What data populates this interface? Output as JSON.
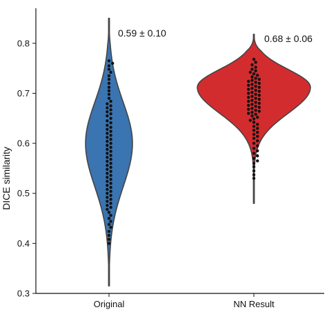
{
  "chart_data": {
    "type": "violin",
    "title": "",
    "xlabel": "",
    "ylabel": "DICE similarity",
    "ylim": [
      0.3,
      0.87
    ],
    "yticks": [
      0.3,
      0.4,
      0.5,
      0.6,
      0.7,
      0.8
    ],
    "ytick_labels": [
      "0.3",
      "0.4",
      "0.5",
      "0.6",
      "0.7",
      "0.8"
    ],
    "grid": false,
    "categories": [
      "Original",
      "NN Result"
    ],
    "series": [
      {
        "category": "Original",
        "color": "#3a74b1",
        "range": [
          0.315,
          0.85
        ],
        "annotation": "0.59 ± 0.10",
        "points": [
          0.765,
          0.76,
          0.755,
          0.748,
          0.742,
          0.735,
          0.728,
          0.72,
          0.712,
          0.705,
          0.698,
          0.69,
          0.684,
          0.679,
          0.675,
          0.671,
          0.667,
          0.663,
          0.659,
          0.655,
          0.65,
          0.645,
          0.641,
          0.636,
          0.632,
          0.628,
          0.624,
          0.62,
          0.616,
          0.612,
          0.608,
          0.604,
          0.6,
          0.596,
          0.592,
          0.588,
          0.584,
          0.58,
          0.576,
          0.572,
          0.568,
          0.564,
          0.56,
          0.556,
          0.552,
          0.548,
          0.544,
          0.54,
          0.536,
          0.532,
          0.528,
          0.524,
          0.52,
          0.516,
          0.512,
          0.508,
          0.504,
          0.5,
          0.496,
          0.492,
          0.488,
          0.484,
          0.48,
          0.476,
          0.472,
          0.468,
          0.462,
          0.456,
          0.45,
          0.444,
          0.438,
          0.432,
          0.424,
          0.416,
          0.408,
          0.4
        ]
      },
      {
        "category": "NN Result",
        "color": "#d32c2f",
        "range": [
          0.48,
          0.818
        ],
        "annotation": "0.68 ± 0.06",
        "points": [
          0.768,
          0.762,
          0.757,
          0.752,
          0.748,
          0.745,
          0.742,
          0.739,
          0.736,
          0.733,
          0.73,
          0.728,
          0.726,
          0.724,
          0.722,
          0.72,
          0.718,
          0.716,
          0.714,
          0.712,
          0.71,
          0.708,
          0.706,
          0.704,
          0.702,
          0.7,
          0.698,
          0.696,
          0.694,
          0.692,
          0.69,
          0.688,
          0.686,
          0.684,
          0.682,
          0.68,
          0.678,
          0.676,
          0.674,
          0.672,
          0.67,
          0.668,
          0.666,
          0.664,
          0.662,
          0.66,
          0.658,
          0.655,
          0.652,
          0.649,
          0.646,
          0.642,
          0.638,
          0.634,
          0.63,
          0.626,
          0.622,
          0.618,
          0.614,
          0.61,
          0.605,
          0.6,
          0.595,
          0.59,
          0.585,
          0.58,
          0.575,
          0.57,
          0.565,
          0.56,
          0.553,
          0.545,
          0.537,
          0.53
        ]
      }
    ]
  }
}
